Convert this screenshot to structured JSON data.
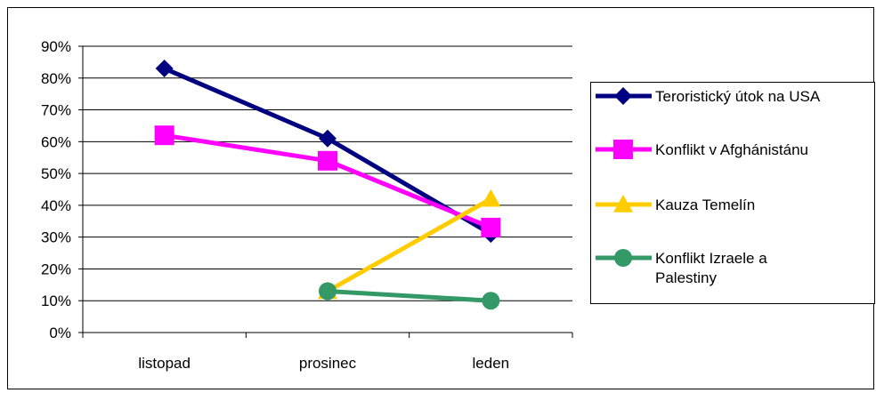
{
  "chart_data": {
    "type": "line",
    "categories": [
      "listopad",
      "prosinec",
      "leden"
    ],
    "y_ticks": [
      "0%",
      "10%",
      "20%",
      "30%",
      "40%",
      "50%",
      "60%",
      "70%",
      "80%",
      "90%"
    ],
    "ylim": [
      0,
      90
    ],
    "grid": true,
    "legend_position": "right",
    "series": [
      {
        "name": "Teroristický útok na USA",
        "color": "#000080",
        "marker": "diamond",
        "values": [
          83,
          61,
          31
        ]
      },
      {
        "name": "Konflikt v Afghánistánu",
        "color": "#FF00FF",
        "marker": "square",
        "values": [
          62,
          54,
          33
        ]
      },
      {
        "name": "Kauza Temelín",
        "color": "#FFCC00",
        "marker": "triangle",
        "values": [
          null,
          13,
          42
        ]
      },
      {
        "name": "Konflikt Izraele a Palestiny",
        "color": "#339966",
        "marker": "circle",
        "values": [
          null,
          13,
          10
        ]
      }
    ]
  }
}
